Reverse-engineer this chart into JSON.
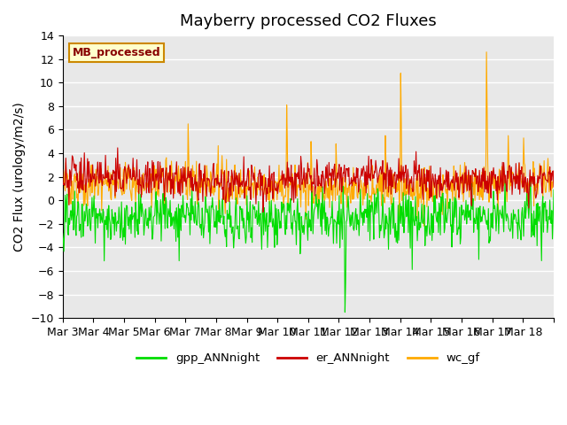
{
  "title": "Mayberry processed CO2 Fluxes",
  "ylabel": "CO2 Flux (urology/m2/s)",
  "ylim": [
    -10,
    14
  ],
  "yticks": [
    -10,
    -8,
    -6,
    -4,
    -2,
    0,
    2,
    4,
    6,
    8,
    10,
    12,
    14
  ],
  "xtick_positions": [
    0,
    1,
    2,
    3,
    4,
    5,
    6,
    7,
    8,
    9,
    10,
    11,
    12,
    13,
    14,
    15,
    16
  ],
  "xlabels": [
    "Mar 3",
    "Mar 4",
    "Mar 5",
    "Mar 6",
    "Mar 7",
    "Mar 8",
    "Mar 9",
    "Mar 10",
    "Mar 11",
    "Mar 12",
    "Mar 13",
    "Mar 14",
    "Mar 15",
    "Mar 16",
    "Mar 17",
    "Mar 18",
    ""
  ],
  "n_points": 768,
  "color_gpp": "#00dd00",
  "color_er": "#cc0000",
  "color_wc": "#ffaa00",
  "legend_label": "MB_processed",
  "legend_box_color": "#ffffcc",
  "legend_box_edge": "#cc8800",
  "legend_text_color": "#880000",
  "line_width": 0.8,
  "background_color": "#e8e8e8",
  "title_fontsize": 13,
  "axis_label_fontsize": 10,
  "tick_fontsize": 9,
  "legend_labels": [
    "gpp_ANNnight",
    "er_ANNnight",
    "wc_gf"
  ]
}
